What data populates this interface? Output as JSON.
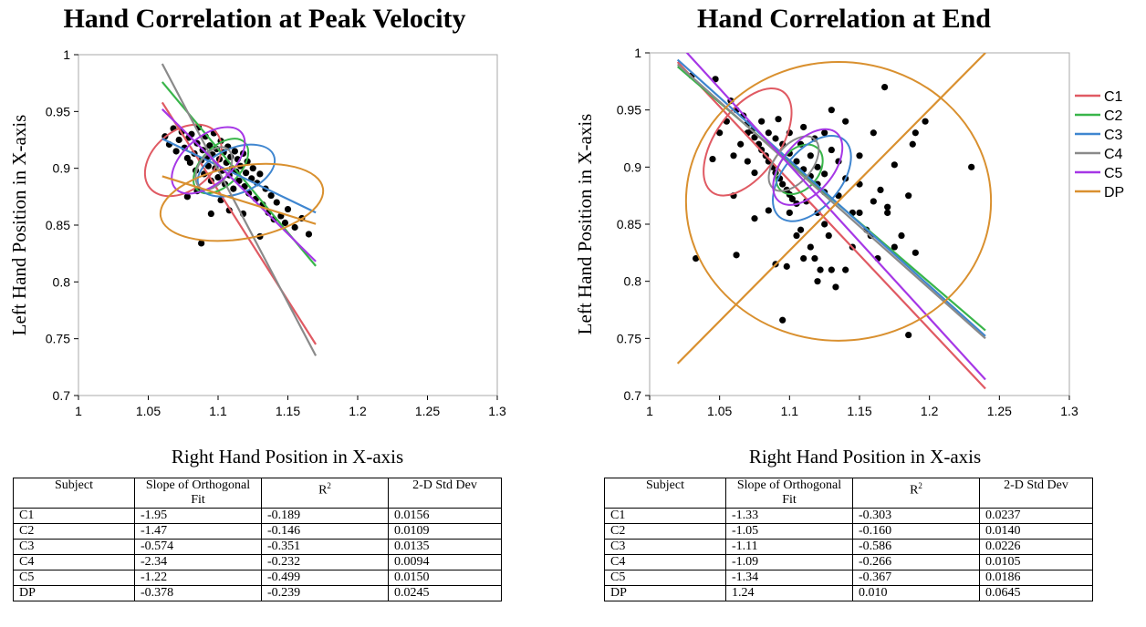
{
  "chart_data": [
    {
      "type": "scatter",
      "title": "Hand Correlation at Peak Velocity",
      "xlabel": "Right Hand Position in X-axis",
      "ylabel": "Left Hand Position in X-axis",
      "xlim": [
        1,
        1.3
      ],
      "ylim": [
        0.7,
        1
      ],
      "xticks": [
        "1",
        "1.05",
        "1.1",
        "1.15",
        "1.2",
        "1.25",
        "1.3"
      ],
      "yticks": [
        "0.7",
        "0.75",
        "0.8",
        "0.85",
        "0.9",
        "0.95",
        "1"
      ],
      "grid": false,
      "points": [
        [
          1.062,
          0.928
        ],
        [
          1.065,
          0.921
        ],
        [
          1.068,
          0.935
        ],
        [
          1.07,
          0.915
        ],
        [
          1.072,
          0.925
        ],
        [
          1.074,
          0.932
        ],
        [
          1.076,
          0.918
        ],
        [
          1.078,
          0.909
        ],
        [
          1.079,
          0.927
        ],
        [
          1.08,
          0.905
        ],
        [
          1.081,
          0.93
        ],
        [
          1.083,
          0.913
        ],
        [
          1.084,
          0.898
        ],
        [
          1.085,
          0.922
        ],
        [
          1.086,
          0.936
        ],
        [
          1.088,
          0.907
        ],
        [
          1.089,
          0.916
        ],
        [
          1.09,
          0.895
        ],
        [
          1.091,
          0.928
        ],
        [
          1.092,
          0.91
        ],
        [
          1.093,
          0.902
        ],
        [
          1.094,
          0.92
        ],
        [
          1.095,
          0.889
        ],
        [
          1.096,
          0.912
        ],
        [
          1.097,
          0.931
        ],
        [
          1.098,
          0.9
        ],
        [
          1.099,
          0.917
        ],
        [
          1.1,
          0.892
        ],
        [
          1.101,
          0.908
        ],
        [
          1.102,
          0.924
        ],
        [
          1.103,
          0.898
        ],
        [
          1.104,
          0.914
        ],
        [
          1.105,
          0.886
        ],
        [
          1.106,
          0.905
        ],
        [
          1.107,
          0.919
        ],
        [
          1.108,
          0.894
        ],
        [
          1.109,
          0.91
        ],
        [
          1.11,
          0.9
        ],
        [
          1.111,
          0.882
        ],
        [
          1.112,
          0.915
        ],
        [
          1.113,
          0.897
        ],
        [
          1.114,
          0.908
        ],
        [
          1.115,
          0.889
        ],
        [
          1.116,
          0.902
        ],
        [
          1.118,
          0.913
        ],
        [
          1.119,
          0.884
        ],
        [
          1.12,
          0.896
        ],
        [
          1.121,
          0.906
        ],
        [
          1.122,
          0.878
        ],
        [
          1.124,
          0.891
        ],
        [
          1.125,
          0.9
        ],
        [
          1.127,
          0.873
        ],
        [
          1.128,
          0.887
        ],
        [
          1.13,
          0.895
        ],
        [
          1.132,
          0.868
        ],
        [
          1.134,
          0.882
        ],
        [
          1.136,
          0.861
        ],
        [
          1.138,
          0.876
        ],
        [
          1.14,
          0.855
        ],
        [
          1.142,
          0.87
        ],
        [
          1.145,
          0.858
        ],
        [
          1.148,
          0.852
        ],
        [
          1.15,
          0.864
        ],
        [
          1.155,
          0.848
        ],
        [
          1.16,
          0.856
        ],
        [
          1.165,
          0.842
        ],
        [
          1.088,
          0.834
        ],
        [
          1.095,
          0.86
        ],
        [
          1.102,
          0.872
        ],
        [
          1.078,
          0.875
        ],
        [
          1.085,
          0.88
        ],
        [
          1.118,
          0.86
        ],
        [
          1.13,
          0.84
        ],
        [
          1.108,
          0.863
        ]
      ],
      "series": [
        {
          "name": "C1",
          "color": "#e05a63",
          "fit": [
            [
              1.06,
              0.958
            ],
            [
              1.17,
              0.745
            ]
          ],
          "ellipse": {
            "cx": 1.075,
            "cy": 0.907,
            "rx": 0.031,
            "ry": 0.026,
            "angle": -40
          }
        },
        {
          "name": "C2",
          "color": "#39b54a",
          "fit": [
            [
              1.06,
              0.976
            ],
            [
              1.17,
              0.814
            ]
          ],
          "ellipse": {
            "cx": 1.102,
            "cy": 0.902,
            "rx": 0.024,
            "ry": 0.017,
            "angle": -45
          }
        },
        {
          "name": "C3",
          "color": "#3f86d0",
          "fit": [
            [
              1.06,
              0.926
            ],
            [
              1.17,
              0.861
            ]
          ],
          "ellipse": {
            "cx": 1.113,
            "cy": 0.898,
            "rx": 0.029,
            "ry": 0.02,
            "angle": -22
          }
        },
        {
          "name": "C4",
          "color": "#8a8a8a",
          "fit": [
            [
              1.06,
              0.992
            ],
            [
              1.17,
              0.735
            ]
          ],
          "ellipse": {
            "cx": 1.097,
            "cy": 0.9,
            "rx": 0.017,
            "ry": 0.013,
            "angle": -55
          }
        },
        {
          "name": "C5",
          "color": "#a637e6",
          "fit": [
            [
              1.06,
              0.952
            ],
            [
              1.17,
              0.818
            ]
          ],
          "ellipse": {
            "cx": 1.093,
            "cy": 0.907,
            "rx": 0.031,
            "ry": 0.021,
            "angle": -40
          }
        },
        {
          "name": "DP",
          "color": "#d9902f",
          "fit": [
            [
              1.06,
              0.893
            ],
            [
              1.17,
              0.851
            ]
          ],
          "ellipse": {
            "cx": 1.117,
            "cy": 0.87,
            "rx": 0.059,
            "ry": 0.032,
            "angle": -10
          }
        }
      ],
      "table": {
        "headers": [
          "Subject",
          "Slope of Orthogonal Fit",
          "R",
          "2-D Std Dev"
        ],
        "superscript": "2",
        "rows": [
          [
            "C1",
            "-1.95",
            "-0.189",
            "0.0156"
          ],
          [
            "C2",
            "-1.47",
            "-0.146",
            "0.0109"
          ],
          [
            "C3",
            "-0.574",
            "-0.351",
            "0.0135"
          ],
          [
            "C4",
            "-2.34",
            "-0.232",
            "0.0094"
          ],
          [
            "C5",
            "-1.22",
            "-0.499",
            "0.0150"
          ],
          [
            "DP",
            "-0.378",
            "-0.239",
            "0.0245"
          ]
        ]
      }
    },
    {
      "type": "scatter",
      "title": "Hand Correlation at End",
      "xlabel": "Right Hand Position in X-axis",
      "ylabel": "Left Hand Position in X-axis",
      "xlim": [
        1,
        1.3
      ],
      "ylim": [
        0.7,
        1
      ],
      "xticks": [
        "1",
        "1.05",
        "1.1",
        "1.15",
        "1.2",
        "1.25",
        "1.3"
      ],
      "yticks": [
        "0.7",
        "0.75",
        "0.8",
        "0.85",
        "0.9",
        "0.95",
        "1"
      ],
      "grid": false,
      "legend": "right",
      "points": [
        [
          1.03,
          0.98
        ],
        [
          1.047,
          0.977
        ],
        [
          1.058,
          0.958
        ],
        [
          1.062,
          0.95
        ],
        [
          1.067,
          0.945
        ],
        [
          1.07,
          0.938
        ],
        [
          1.073,
          0.932
        ],
        [
          1.075,
          0.926
        ],
        [
          1.078,
          0.92
        ],
        [
          1.08,
          0.915
        ],
        [
          1.083,
          0.91
        ],
        [
          1.085,
          0.905
        ],
        [
          1.088,
          0.9
        ],
        [
          1.09,
          0.895
        ],
        [
          1.093,
          0.89
        ],
        [
          1.095,
          0.885
        ],
        [
          1.098,
          0.88
        ],
        [
          1.1,
          0.876
        ],
        [
          1.102,
          0.872
        ],
        [
          1.105,
          0.868
        ],
        [
          1.085,
          0.93
        ],
        [
          1.09,
          0.925
        ],
        [
          1.095,
          0.92
        ],
        [
          1.1,
          0.912
        ],
        [
          1.105,
          0.905
        ],
        [
          1.11,
          0.898
        ],
        [
          1.115,
          0.892
        ],
        [
          1.12,
          0.885
        ],
        [
          1.125,
          0.878
        ],
        [
          1.08,
          0.94
        ],
        [
          1.092,
          0.942
        ],
        [
          1.1,
          0.93
        ],
        [
          1.108,
          0.92
        ],
        [
          1.115,
          0.91
        ],
        [
          1.12,
          0.9
        ],
        [
          1.125,
          0.894
        ],
        [
          1.065,
          0.92
        ],
        [
          1.07,
          0.905
        ],
        [
          1.075,
          0.895
        ],
        [
          1.06,
          0.91
        ],
        [
          1.07,
          0.93
        ],
        [
          1.055,
          0.94
        ],
        [
          1.05,
          0.93
        ],
        [
          1.045,
          0.907
        ],
        [
          1.033,
          0.82
        ],
        [
          1.06,
          0.875
        ],
        [
          1.062,
          0.823
        ],
        [
          1.075,
          0.855
        ],
        [
          1.085,
          0.862
        ],
        [
          1.09,
          0.815
        ],
        [
          1.098,
          0.813
        ],
        [
          1.095,
          0.766
        ],
        [
          1.105,
          0.84
        ],
        [
          1.11,
          0.82
        ],
        [
          1.115,
          0.83
        ],
        [
          1.12,
          0.86
        ],
        [
          1.125,
          0.85
        ],
        [
          1.13,
          0.81
        ],
        [
          1.133,
          0.795
        ],
        [
          1.14,
          0.81
        ],
        [
          1.145,
          0.83
        ],
        [
          1.15,
          0.86
        ],
        [
          1.155,
          0.845
        ],
        [
          1.16,
          0.87
        ],
        [
          1.165,
          0.88
        ],
        [
          1.17,
          0.86
        ],
        [
          1.175,
          0.83
        ],
        [
          1.18,
          0.84
        ],
        [
          1.185,
          0.875
        ],
        [
          1.188,
          0.92
        ],
        [
          1.19,
          0.825
        ],
        [
          1.19,
          0.93
        ],
        [
          1.197,
          0.94
        ],
        [
          1.23,
          0.9
        ],
        [
          1.168,
          0.97
        ],
        [
          1.185,
          0.753
        ],
        [
          1.13,
          0.95
        ],
        [
          1.14,
          0.94
        ],
        [
          1.15,
          0.91
        ],
        [
          1.16,
          0.93
        ],
        [
          1.175,
          0.902
        ],
        [
          1.17,
          0.865
        ],
        [
          1.14,
          0.89
        ],
        [
          1.145,
          0.86
        ],
        [
          1.15,
          0.885
        ],
        [
          1.135,
          0.875
        ],
        [
          1.128,
          0.84
        ],
        [
          1.12,
          0.8
        ],
        [
          1.112,
          0.87
        ],
        [
          1.108,
          0.845
        ],
        [
          1.1,
          0.86
        ],
        [
          1.118,
          0.82
        ],
        [
          1.122,
          0.81
        ],
        [
          1.158,
          0.84
        ],
        [
          1.163,
          0.82
        ],
        [
          1.11,
          0.935
        ],
        [
          1.118,
          0.925
        ],
        [
          1.125,
          0.93
        ],
        [
          1.13,
          0.915
        ],
        [
          1.135,
          0.905
        ]
      ],
      "series": [
        {
          "name": "C1",
          "color": "#e05a63",
          "fit": [
            [
              1.02,
              0.992
            ],
            [
              1.24,
              0.706
            ]
          ],
          "ellipse": {
            "cx": 1.07,
            "cy": 0.922,
            "rx": 0.044,
            "ry": 0.028,
            "angle": -55
          }
        },
        {
          "name": "C2",
          "color": "#39b54a",
          "fit": [
            [
              1.02,
              0.988
            ],
            [
              1.24,
              0.757
            ]
          ],
          "ellipse": {
            "cx": 1.107,
            "cy": 0.898,
            "rx": 0.02,
            "ry": 0.017,
            "angle": -50
          }
        },
        {
          "name": "C3",
          "color": "#3f86d0",
          "fit": [
            [
              1.02,
              0.994
            ],
            [
              1.24,
              0.752
            ]
          ],
          "ellipse": {
            "cx": 1.116,
            "cy": 0.89,
            "rx": 0.036,
            "ry": 0.025,
            "angle": -50
          }
        },
        {
          "name": "C4",
          "color": "#8a8a8a",
          "fit": [
            [
              1.02,
              0.99
            ],
            [
              1.24,
              0.75
            ]
          ],
          "ellipse": {
            "cx": 1.103,
            "cy": 0.903,
            "rx": 0.023,
            "ry": 0.016,
            "angle": -50
          }
        },
        {
          "name": "C5",
          "color": "#a637e6",
          "fit": [
            [
              1.02,
              1.009
            ],
            [
              1.24,
              0.714
            ]
          ],
          "ellipse": {
            "cx": 1.113,
            "cy": 0.9,
            "rx": 0.032,
            "ry": 0.022,
            "angle": -50
          }
        },
        {
          "name": "DP",
          "color": "#d9902f",
          "fit": [
            [
              1.02,
              0.728
            ],
            [
              1.24,
              1.0
            ]
          ],
          "ellipse": {
            "cx": 1.135,
            "cy": 0.87,
            "rx": 0.109,
            "ry": 0.122,
            "angle": 0
          }
        }
      ],
      "table": {
        "headers": [
          "Subject",
          "Slope of Orthogonal Fit",
          "R",
          "2-D Std Dev"
        ],
        "superscript": "2",
        "rows": [
          [
            "C1",
            "-1.33",
            "-0.303",
            "0.0237"
          ],
          [
            "C2",
            "-1.05",
            "-0.160",
            "0.0140"
          ],
          [
            "C3",
            "-1.11",
            "-0.586",
            "0.0226"
          ],
          [
            "C4",
            "-1.09",
            "-0.266",
            "0.0105"
          ],
          [
            "C5",
            "-1.34",
            "-0.367",
            "0.0186"
          ],
          [
            "DP",
            "1.24",
            "0.010",
            "0.0645"
          ]
        ]
      }
    }
  ]
}
